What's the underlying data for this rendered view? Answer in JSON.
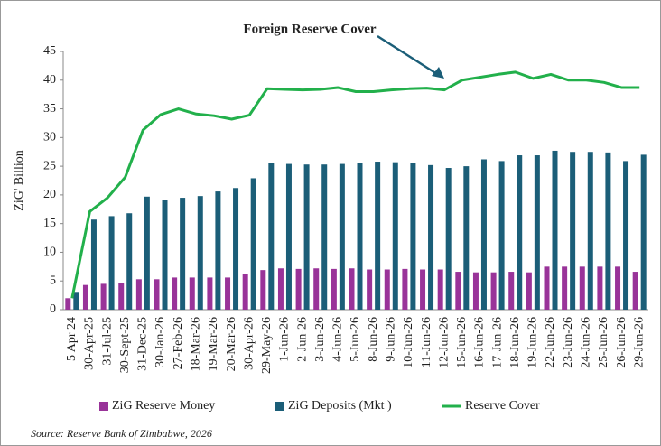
{
  "chart_data": {
    "type": "bar_line",
    "title": "Foreign Reserve Cover",
    "y_label": "ZiG' Billion",
    "source": "Source: Reserve Bank of Zimbabwe, 2026",
    "categories": [
      "5 Apr 24",
      "30-Apr-25",
      "31-Jul-25",
      "30-Sept-25",
      "31-Dec-25",
      "30-Jan-26",
      "27-Feb-26",
      "18-Mar-26",
      "19-Mar-26",
      "20-Mar-26",
      "30-Apr-26",
      "29-May-26",
      "1-Jun-26",
      "2-Jun-26",
      "3-Jun-26",
      "4-Jun-26",
      "5-Jun-26",
      "8-Jun-26",
      "9-Jun-26",
      "10-Jun-26",
      "11-Jun-26",
      "12-Jun-26",
      "15-Jun-26",
      "16-Jun-26",
      "17-Jun-26",
      "18-Jun-26",
      "19-Jun-26",
      "22-Jun-26",
      "23-Jun-26",
      "24-Jun-26",
      "25-Jun-26",
      "26-Jun-26",
      "29-Jun-26"
    ],
    "series": [
      {
        "name": "ZiG Reserve Money",
        "color": "#993399",
        "kind": "bar",
        "values": [
          2,
          4.3,
          4.5,
          4.7,
          5.3,
          5.3,
          5.6,
          5.6,
          5.6,
          5.6,
          6.2,
          6.9,
          7.2,
          7.1,
          7.2,
          7.1,
          7.2,
          7.0,
          7.0,
          7.1,
          7.0,
          7.0,
          6.6,
          6.5,
          6.5,
          6.6,
          6.5,
          7.5,
          7.5,
          7.5,
          7.5,
          7.5,
          6.6
        ]
      },
      {
        "name": "ZiG Deposits (Mkt )",
        "color": "#1b5e78",
        "kind": "bar",
        "values": [
          3.1,
          15.7,
          16.3,
          16.8,
          19.7,
          19.1,
          19.5,
          19.8,
          20.6,
          21.2,
          22.9,
          25.5,
          25.4,
          25.3,
          25.3,
          25.4,
          25.5,
          25.8,
          25.7,
          25.6,
          25.2,
          24.7,
          25.0,
          26.2,
          25.9,
          26.9,
          26.9,
          27.7,
          27.5,
          27.5,
          27.4,
          25.9,
          27.0
        ]
      },
      {
        "name": "Reserve Cover",
        "color": "#22b04b",
        "kind": "line",
        "values": [
          2.0,
          17.1,
          19.5,
          23.1,
          31.3,
          34.0,
          35.0,
          34.1,
          33.8,
          33.2,
          33.9,
          38.5,
          38.4,
          38.3,
          38.4,
          38.7,
          38.0,
          38.0,
          38.3,
          38.5,
          38.6,
          38.3,
          40.0,
          40.5,
          41.0,
          41.4,
          40.3,
          41.0,
          40.0,
          40.0,
          39.6,
          38.7,
          38.7
        ]
      }
    ],
    "ylim": [
      0,
      45
    ],
    "yticks": [
      0,
      5,
      10,
      15,
      20,
      25,
      30,
      35,
      40,
      45
    ],
    "grid": false
  }
}
